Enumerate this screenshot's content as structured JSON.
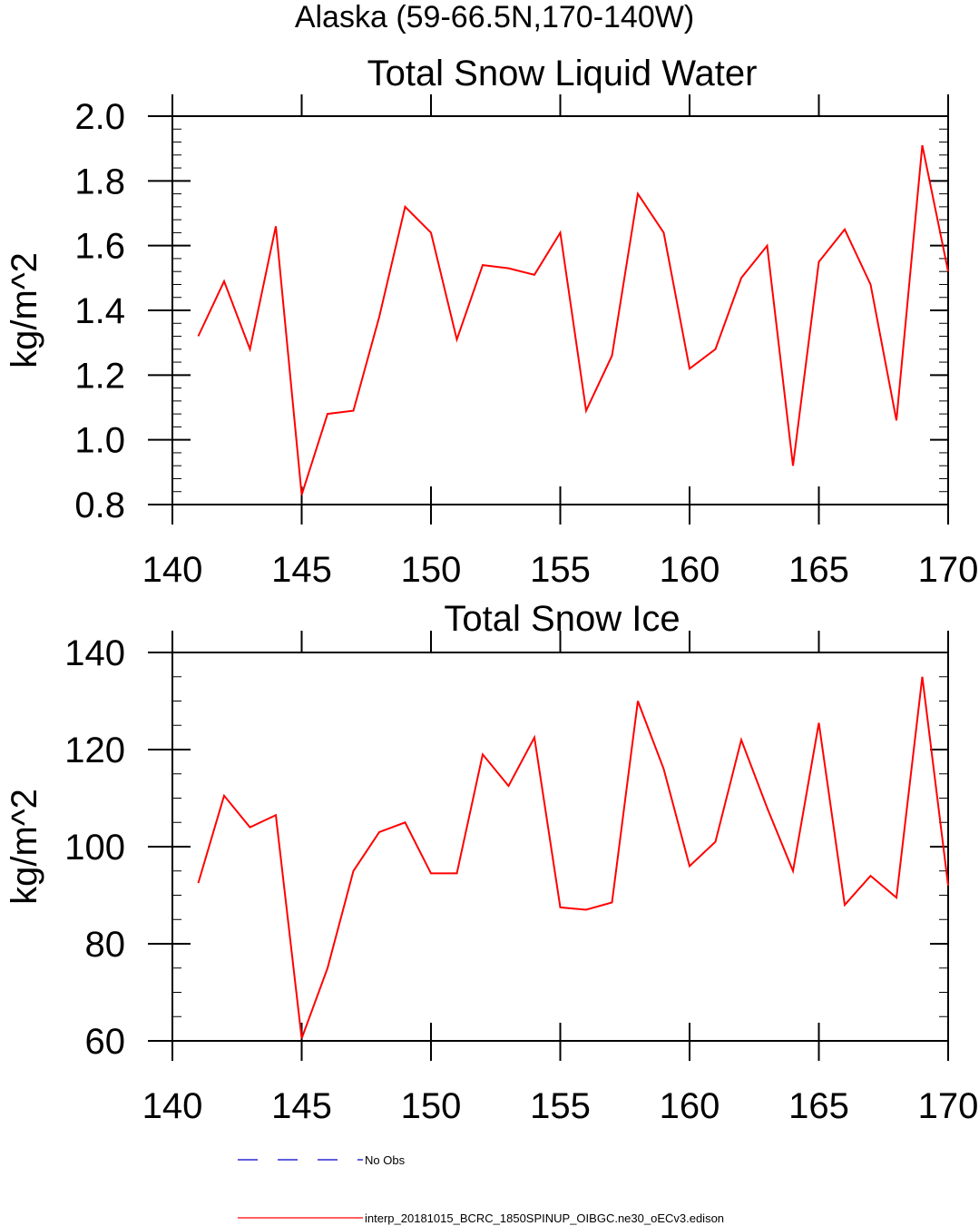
{
  "figure_title": "Alaska (59-66.5N,170-140W)",
  "chart_data": [
    {
      "type": "line",
      "title": "Total Snow Liquid Water",
      "xlabel": "",
      "ylabel": "kg/m^2",
      "xlim": [
        140,
        170
      ],
      "ylim": [
        0.8,
        2.0
      ],
      "xticks": [
        140,
        145,
        150,
        155,
        160,
        165,
        170
      ],
      "yticks": [
        0.8,
        1.0,
        1.2,
        1.4,
        1.6,
        1.8,
        2.0
      ],
      "ytick_labels": [
        "0.8",
        "1.0",
        "1.2",
        "1.4",
        "1.6",
        "1.8",
        "2.0"
      ],
      "ytick_minor": 0.04,
      "xtick_minor": 1,
      "grid": false,
      "series": [
        {
          "name": "interp_20181015_BCRC_1850SPINUP_OIBGC.ne30_oECv3.edison",
          "color": "#ff0000",
          "x": [
            141,
            142,
            143,
            144,
            145,
            146,
            147,
            148,
            149,
            150,
            151,
            152,
            153,
            154,
            155,
            156,
            157,
            158,
            159,
            160,
            161,
            162,
            163,
            164,
            165,
            166,
            167,
            168,
            169,
            170
          ],
          "y": [
            1.32,
            1.49,
            1.28,
            1.66,
            0.83,
            1.08,
            1.09,
            1.38,
            1.72,
            1.64,
            1.31,
            1.54,
            1.53,
            1.51,
            1.64,
            1.09,
            1.26,
            1.76,
            1.64,
            1.22,
            1.28,
            1.5,
            1.6,
            0.92,
            1.55,
            1.65,
            1.48,
            1.06,
            1.91,
            1.52
          ]
        }
      ]
    },
    {
      "type": "line",
      "title": "Total Snow Ice",
      "xlabel": "",
      "ylabel": "kg/m^2",
      "xlim": [
        140,
        170
      ],
      "ylim": [
        60,
        140
      ],
      "xticks": [
        140,
        145,
        150,
        155,
        160,
        165,
        170
      ],
      "yticks": [
        60,
        80,
        100,
        120,
        140
      ],
      "ytick_labels": [
        "60",
        "80",
        "100",
        "120",
        "140"
      ],
      "ytick_minor": 5,
      "xtick_minor": 1,
      "grid": false,
      "series": [
        {
          "name": "interp_20181015_BCRC_1850SPINUP_OIBGC.ne30_oECv3.edison",
          "color": "#ff0000",
          "x": [
            141,
            142,
            143,
            144,
            145,
            146,
            147,
            148,
            149,
            150,
            151,
            152,
            153,
            154,
            155,
            156,
            157,
            158,
            159,
            160,
            161,
            162,
            163,
            164,
            165,
            166,
            167,
            168,
            169,
            170
          ],
          "y": [
            92.5,
            110.5,
            104,
            106.5,
            60.5,
            75,
            95,
            103,
            105,
            94.5,
            94.5,
            119,
            112.5,
            122.5,
            87.5,
            87,
            88.5,
            130,
            116,
            96,
            101,
            122,
            108,
            95,
            125.5,
            88,
            94,
            89.5,
            135,
            92
          ]
        }
      ]
    }
  ],
  "legend": [
    {
      "label": "No Obs",
      "color": "#0000cc",
      "style": "dashed"
    },
    {
      "label": "interp_20181015_BCRC_1850SPINUP_OIBGC.ne30_oECv3.edison",
      "color": "#ff0000",
      "style": "solid"
    }
  ]
}
